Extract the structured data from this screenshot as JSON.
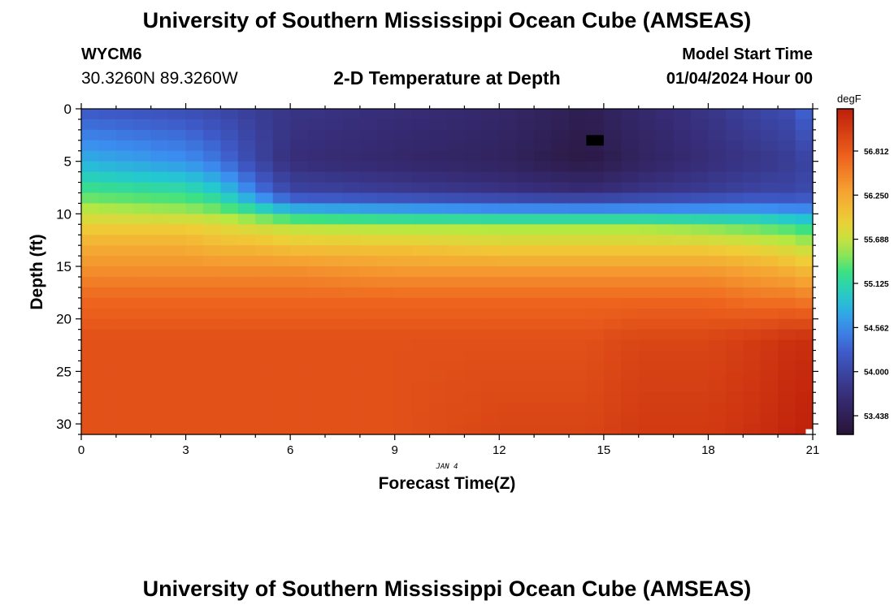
{
  "header": {
    "title": "University of Southern Mississippi Ocean Cube (AMSEAS)",
    "station": "WYCM6",
    "coords": "30.3260N  89.3260W",
    "plot_title": "2-D Temperature at Depth",
    "start_label": "Model Start Time",
    "start_value": "01/04/2024 Hour 00"
  },
  "footer": {
    "title": "University of Southern Mississippi Ocean Cube (AMSEAS)"
  },
  "chart_data": {
    "type": "heatmap",
    "title": "2-D Temperature at Depth",
    "xlabel": "Forecast Time(Z)",
    "ylabel": "Depth (ft)",
    "x_date_label": "JAN 4",
    "x_ticks": [
      0,
      3,
      6,
      9,
      12,
      15,
      18,
      21
    ],
    "y_ticks": [
      0,
      5,
      10,
      15,
      20,
      25,
      30
    ],
    "xlim": [
      0,
      21
    ],
    "ylim": [
      0,
      31
    ],
    "y_inverted": true,
    "colorbar": {
      "unit": "degF",
      "min": 53.2,
      "max": 57.35,
      "ticks": [
        "53.438",
        "54.000",
        "54.562",
        "55.125",
        "55.688",
        "56.250",
        "56.812"
      ]
    },
    "depth_levels": [
      0,
      5,
      8,
      10,
      11,
      13,
      15,
      18,
      22,
      31
    ],
    "time_hours": [
      0,
      3,
      4,
      5,
      6,
      9,
      12,
      14.5,
      16,
      18,
      19.5,
      20.5,
      21
    ],
    "temperature_grid_degF": [
      [
        54.2,
        54.1,
        54.0,
        53.9,
        53.8,
        53.7,
        53.6,
        53.4,
        53.6,
        53.8,
        54.0,
        54.1,
        54.5
      ],
      [
        54.8,
        54.6,
        54.4,
        54.0,
        53.7,
        53.6,
        53.5,
        53.3,
        53.5,
        53.7,
        53.8,
        53.9,
        54.0
      ],
      [
        55.3,
        55.2,
        55.0,
        54.5,
        54.0,
        53.9,
        53.8,
        53.7,
        53.8,
        53.9,
        54.0,
        54.0,
        54.1
      ],
      [
        55.7,
        55.6,
        55.5,
        55.3,
        55.0,
        54.9,
        54.8,
        54.8,
        54.8,
        54.8,
        54.8,
        54.7,
        54.7
      ],
      [
        55.9,
        55.9,
        55.8,
        55.7,
        55.6,
        55.5,
        55.5,
        55.5,
        55.5,
        55.4,
        55.3,
        55.2,
        55.1
      ],
      [
        56.2,
        56.2,
        56.1,
        56.1,
        56.0,
        56.0,
        55.9,
        55.9,
        55.9,
        55.9,
        55.8,
        55.7,
        55.6
      ],
      [
        56.4,
        56.4,
        56.4,
        56.4,
        56.4,
        56.3,
        56.3,
        56.3,
        56.3,
        56.3,
        56.2,
        56.1,
        56.0
      ],
      [
        56.7,
        56.7,
        56.7,
        56.7,
        56.7,
        56.7,
        56.7,
        56.7,
        56.7,
        56.7,
        56.6,
        56.6,
        56.5
      ],
      [
        56.9,
        56.9,
        56.9,
        56.9,
        56.9,
        56.9,
        56.9,
        56.9,
        57.0,
        57.0,
        57.1,
        57.2,
        57.2
      ],
      [
        56.9,
        56.9,
        56.9,
        56.9,
        56.9,
        56.9,
        57.0,
        57.0,
        57.1,
        57.1,
        57.2,
        57.3,
        57.35
      ]
    ],
    "missing_cells": [
      {
        "t0": 14.5,
        "t1": 15.0,
        "d0": 2.5,
        "d1": 3.5
      },
      {
        "t0": 20.8,
        "t1": 21.0,
        "d0": 30.5,
        "d1": 31.0
      }
    ],
    "grid": false,
    "legend": "colorbar-right"
  }
}
